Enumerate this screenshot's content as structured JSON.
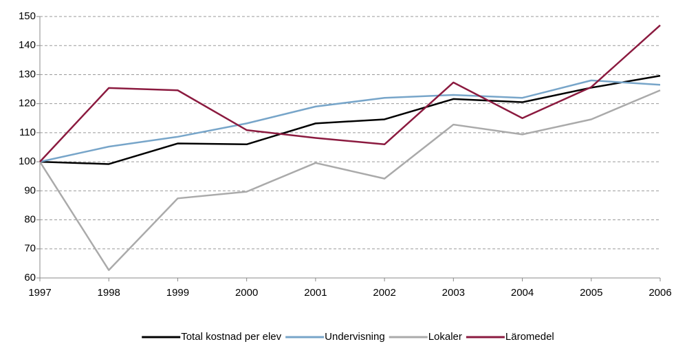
{
  "chart_data": {
    "type": "line",
    "categories": [
      "1997",
      "1998",
      "1999",
      "2000",
      "2001",
      "2002",
      "2003",
      "2004",
      "2005",
      "2006"
    ],
    "series": [
      {
        "name": "Total kostnad per elev",
        "color": "#000000",
        "values": [
          100,
          99.2,
          106.3,
          106,
          113.2,
          114.6,
          121.6,
          120.5,
          125.5,
          129.6
        ]
      },
      {
        "name": "Undervisning",
        "color": "#77a5c9",
        "values": [
          100,
          105.2,
          108.6,
          113.2,
          119,
          122,
          123,
          122,
          128,
          126.5
        ]
      },
      {
        "name": "Lokaler",
        "color": "#aaaaaa",
        "values": [
          100,
          62.7,
          87.4,
          89.7,
          99.6,
          94.2,
          112.8,
          109.4,
          114.6,
          124.6
        ]
      },
      {
        "name": "Läromedel",
        "color": "#8b1a3f",
        "values": [
          100,
          125.4,
          124.6,
          110.9,
          108.2,
          106,
          127.3,
          115,
          125.7,
          147
        ]
      }
    ],
    "ylim": [
      60,
      150
    ],
    "yticks": [
      60,
      70,
      80,
      90,
      100,
      110,
      120,
      130,
      140,
      150
    ],
    "grid": true,
    "legend": "bottom"
  }
}
